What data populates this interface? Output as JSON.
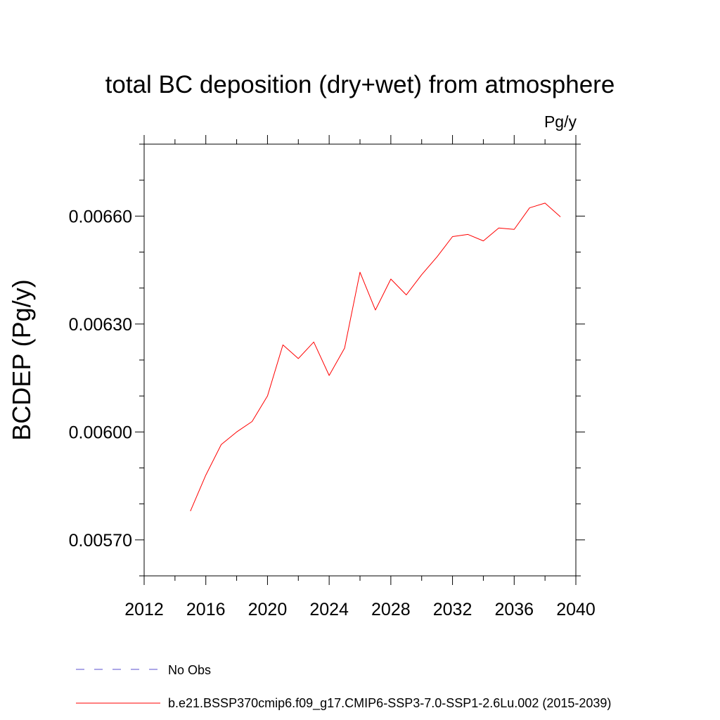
{
  "chart_data": {
    "type": "line",
    "title": "total BC deposition (dry+wet) from atmosphere",
    "units_label": "Pg/y",
    "xlabel": "",
    "ylabel": "BCDEP  (Pg/y)",
    "xlim": [
      2012,
      2040
    ],
    "ylim": [
      0.0056,
      0.0068
    ],
    "x_ticks": [
      2012,
      2016,
      2020,
      2024,
      2028,
      2032,
      2036,
      2040
    ],
    "x_tick_labels": [
      "2012",
      "2016",
      "2020",
      "2024",
      "2028",
      "2032",
      "2036",
      "2040"
    ],
    "x_minor_step": 2,
    "y_ticks": [
      0.0057,
      0.006,
      0.0063,
      0.0066
    ],
    "y_tick_labels": [
      "0.00570",
      "0.00600",
      "0.00630",
      "0.00660"
    ],
    "y_minor_step": 0.0001,
    "grid": false,
    "legend_position": "bottom-left",
    "series": [
      {
        "name": "b.e21.BSSP370cmip6.f09_g17.CMIP6-SSP3-7.0-SSP1-2.6Lu.002 (2015-2039)",
        "color": "#ff0000",
        "style": "solid",
        "x": [
          2015,
          2016,
          2017,
          2018,
          2019,
          2020,
          2021,
          2022,
          2023,
          2024,
          2025,
          2026,
          2027,
          2028,
          2029,
          2030,
          2031,
          2032,
          2033,
          2034,
          2035,
          2036,
          2037,
          2038,
          2039
        ],
        "values": [
          0.00578,
          0.00588,
          0.005965,
          0.006,
          0.006029,
          0.0061,
          0.006242,
          0.006204,
          0.00625,
          0.006157,
          0.006233,
          0.006444,
          0.006339,
          0.006425,
          0.006381,
          0.006437,
          0.006487,
          0.006543,
          0.006549,
          0.006531,
          0.006567,
          0.006563,
          0.006623,
          0.006636,
          0.006598
        ]
      }
    ],
    "legend": [
      {
        "label": "No Obs",
        "color": "#5a4fcf",
        "style": "dashed"
      },
      {
        "label": "b.e21.BSSP370cmip6.f09_g17.CMIP6-SSP3-7.0-SSP1-2.6Lu.002 (2015-2039)",
        "color": "#ff0000",
        "style": "solid"
      }
    ]
  }
}
